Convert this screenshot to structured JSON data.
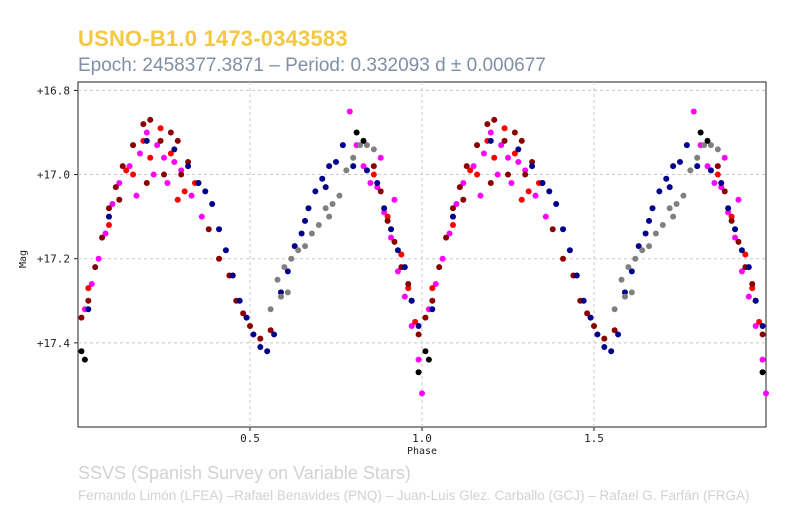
{
  "header": {
    "title": "USNO-B1.0 1473-0343583",
    "subtitle": "Epoch: 2458377.3871 – Period: 0.332093 d ± 0.000677"
  },
  "footer": {
    "survey": "SSVS (Spanish Survey on Variable Stars)",
    "authors": "Fernando Limón (LFEA) –Rafael Benavides (PNQ) – Juan-Luis Glez. Carballo (GCJ) – Rafael G. Farfán (FRGA)"
  },
  "colors": {
    "title": "#f5c842",
    "subtitle": "#7f8fa6",
    "footer": "#d2d2d2",
    "grid": "#c8c8c8"
  },
  "chart_data": {
    "type": "scatter",
    "xlabel": "Phase",
    "ylabel": "Mag",
    "xlim": [
      0.0,
      2.0
    ],
    "ylim": [
      17.6,
      16.78
    ],
    "y_inverted": true,
    "grid": true,
    "x_ticks": [
      0.5,
      1.0,
      1.5
    ],
    "x_tick_labels": [
      "0.5",
      "1.0",
      "1.5"
    ],
    "y_ticks": [
      16.8,
      17.0,
      17.2,
      17.4
    ],
    "y_tick_labels": [
      "+16.8",
      "+17.0",
      "+17.2",
      "+17.4"
    ],
    "phase_repeat": true,
    "series": [
      {
        "name": "magenta",
        "color": "#ff00ff",
        "points": [
          [
            0.02,
            17.32
          ],
          [
            0.04,
            17.26
          ],
          [
            0.06,
            17.2
          ],
          [
            0.08,
            17.14
          ],
          [
            0.1,
            17.07
          ],
          [
            0.12,
            17.02
          ],
          [
            0.15,
            16.98
          ],
          [
            0.18,
            16.95
          ],
          [
            0.2,
            16.9
          ],
          [
            0.23,
            16.93
          ],
          [
            0.25,
            16.96
          ],
          [
            0.28,
            16.97
          ],
          [
            0.3,
            16.99
          ],
          [
            0.33,
            17.05
          ],
          [
            0.36,
            17.1
          ],
          [
            0.22,
            17.0
          ],
          [
            0.26,
            17.02
          ],
          [
            0.17,
            17.05
          ],
          [
            0.79,
            16.85
          ],
          [
            0.81,
            16.93
          ],
          [
            0.83,
            16.98
          ],
          [
            0.85,
            17.02
          ],
          [
            0.87,
            17.03
          ],
          [
            0.89,
            17.09
          ],
          [
            0.91,
            17.15
          ],
          [
            0.93,
            17.23
          ],
          [
            0.95,
            17.29
          ],
          [
            0.97,
            17.36
          ],
          [
            0.99,
            17.44
          ],
          [
            1.0,
            17.52
          ],
          [
            0.88,
            16.96
          ],
          [
            0.92,
            17.06
          ]
        ]
      },
      {
        "name": "red",
        "color": "#ff0000",
        "points": [
          [
            0.03,
            17.27
          ],
          [
            0.09,
            17.12
          ],
          [
            0.14,
            16.99
          ],
          [
            0.19,
            16.92
          ],
          [
            0.21,
            16.96
          ],
          [
            0.24,
            16.89
          ],
          [
            0.27,
            16.95
          ],
          [
            0.31,
            17.04
          ],
          [
            0.16,
            17.0
          ],
          [
            0.29,
            17.06
          ],
          [
            0.34,
            17.02
          ],
          [
            0.86,
            17.0
          ],
          [
            0.9,
            17.1
          ],
          [
            0.94,
            17.19
          ],
          [
            0.98,
            17.35
          ],
          [
            0.96,
            17.27
          ]
        ]
      },
      {
        "name": "dark red",
        "color": "#8b0000",
        "points": [
          [
            0.01,
            17.34
          ],
          [
            0.03,
            17.3
          ],
          [
            0.05,
            17.22
          ],
          [
            0.07,
            17.15
          ],
          [
            0.09,
            17.08
          ],
          [
            0.11,
            17.03
          ],
          [
            0.13,
            16.98
          ],
          [
            0.16,
            16.93
          ],
          [
            0.19,
            16.88
          ],
          [
            0.21,
            16.87
          ],
          [
            0.24,
            16.92
          ],
          [
            0.27,
            16.9
          ],
          [
            0.29,
            16.92
          ],
          [
            0.32,
            16.97
          ],
          [
            0.35,
            17.02
          ],
          [
            0.38,
            17.13
          ],
          [
            0.41,
            17.2
          ],
          [
            0.44,
            17.24
          ],
          [
            0.46,
            17.3
          ],
          [
            0.48,
            17.33
          ],
          [
            0.5,
            17.36
          ],
          [
            0.53,
            17.39
          ],
          [
            0.56,
            17.37
          ],
          [
            0.86,
            16.98
          ],
          [
            0.88,
            17.04
          ],
          [
            0.9,
            17.11
          ],
          [
            0.92,
            17.16
          ],
          [
            0.94,
            17.22
          ],
          [
            0.96,
            17.26
          ],
          [
            0.97,
            17.3
          ],
          [
            0.99,
            17.38
          ],
          [
            0.25,
            17.0
          ],
          [
            0.2,
            17.02
          ],
          [
            0.12,
            17.06
          ],
          [
            0.3,
            17.0
          ]
        ]
      },
      {
        "name": "navy",
        "color": "#00008b",
        "points": [
          [
            0.03,
            17.32
          ],
          [
            0.09,
            17.1
          ],
          [
            0.2,
            16.92
          ],
          [
            0.28,
            16.94
          ],
          [
            0.32,
            16.98
          ],
          [
            0.35,
            17.02
          ],
          [
            0.37,
            17.04
          ],
          [
            0.39,
            17.07
          ],
          [
            0.41,
            17.13
          ],
          [
            0.43,
            17.18
          ],
          [
            0.45,
            17.24
          ],
          [
            0.47,
            17.3
          ],
          [
            0.49,
            17.34
          ],
          [
            0.51,
            17.38
          ],
          [
            0.53,
            17.41
          ],
          [
            0.55,
            17.42
          ],
          [
            0.57,
            17.38
          ],
          [
            0.59,
            17.28
          ],
          [
            0.61,
            17.23
          ],
          [
            0.63,
            17.17
          ],
          [
            0.65,
            17.14
          ],
          [
            0.67,
            17.08
          ],
          [
            0.69,
            17.04
          ],
          [
            0.71,
            17.01
          ],
          [
            0.73,
            16.98
          ],
          [
            0.75,
            16.97
          ],
          [
            0.77,
            16.93
          ],
          [
            0.84,
            16.99
          ],
          [
            0.87,
            17.02
          ],
          [
            0.89,
            17.08
          ],
          [
            0.91,
            17.13
          ],
          [
            0.93,
            17.18
          ],
          [
            0.95,
            17.22
          ],
          [
            0.97,
            17.3
          ],
          [
            0.99,
            17.36
          ],
          [
            0.66,
            17.11
          ],
          [
            0.72,
            17.03
          ],
          [
            0.8,
            16.98
          ]
        ]
      },
      {
        "name": "gray",
        "color": "#808080",
        "points": [
          [
            0.56,
            17.32
          ],
          [
            0.58,
            17.25
          ],
          [
            0.6,
            17.22
          ],
          [
            0.62,
            17.2
          ],
          [
            0.64,
            17.18
          ],
          [
            0.66,
            17.17
          ],
          [
            0.68,
            17.14
          ],
          [
            0.7,
            17.12
          ],
          [
            0.72,
            17.08
          ],
          [
            0.74,
            17.07
          ],
          [
            0.76,
            17.05
          ],
          [
            0.78,
            16.99
          ],
          [
            0.8,
            16.96
          ],
          [
            0.82,
            16.93
          ],
          [
            0.84,
            16.93
          ],
          [
            0.86,
            16.94
          ],
          [
            0.59,
            17.29
          ],
          [
            0.61,
            17.28
          ],
          [
            0.73,
            17.1
          ]
        ]
      },
      {
        "name": "black",
        "color": "#000000",
        "points": [
          [
            0.02,
            17.44
          ],
          [
            0.81,
            16.9
          ],
          [
            0.83,
            16.92
          ],
          [
            0.99,
            17.47
          ],
          [
            0.01,
            17.42
          ]
        ]
      }
    ]
  }
}
